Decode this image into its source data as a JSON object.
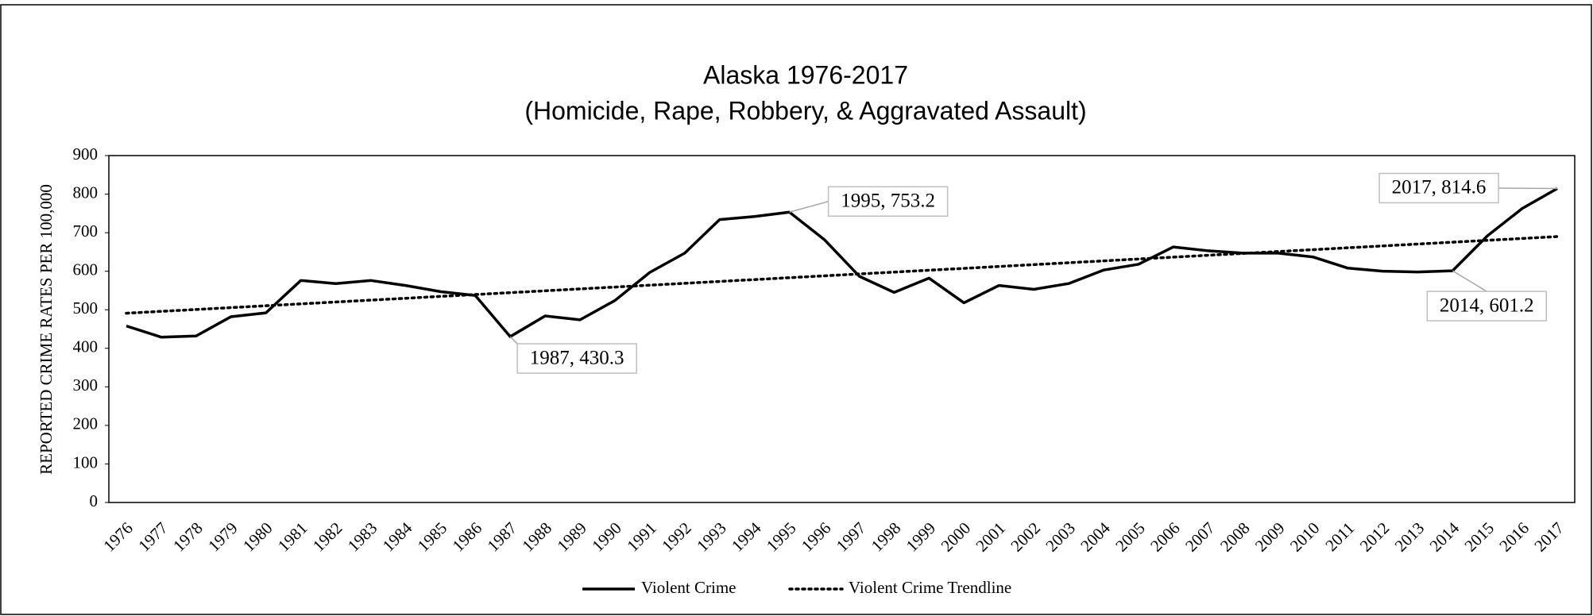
{
  "chart_data": {
    "type": "line",
    "title": "Alaska 1976-2017",
    "subtitle": "(Homicide, Rape, Robbery, & Aggravated Assault)",
    "y_label": "REPORTED CRIME RATES PER 100,000",
    "categories": [
      "1976",
      "1977",
      "1978",
      "1979",
      "1980",
      "1981",
      "1982",
      "1983",
      "1984",
      "1985",
      "1986",
      "1987",
      "1988",
      "1989",
      "1990",
      "1991",
      "1992",
      "1993",
      "1994",
      "1995",
      "1996",
      "1997",
      "1998",
      "1999",
      "2000",
      "2001",
      "2002",
      "2003",
      "2004",
      "2005",
      "2006",
      "2007",
      "2008",
      "2009",
      "2010",
      "2011",
      "2012",
      "2013",
      "2014",
      "2015",
      "2016",
      "2017"
    ],
    "series": [
      {
        "name": "Violent Crime",
        "color": "#000000",
        "dash": "solid",
        "values": [
          458,
          429,
          432,
          482,
          492,
          576,
          568,
          576,
          563,
          547,
          537,
          430.3,
          484,
          474,
          524,
          597,
          647,
          734,
          742,
          753.2,
          682,
          587,
          545,
          582,
          518,
          563,
          553,
          568,
          603,
          618,
          663,
          653,
          647,
          647,
          637,
          608,
          600,
          598,
          601.2,
          692,
          763,
          814.6
        ],
        "value_labels": [
          null,
          null,
          null,
          null,
          null,
          null,
          null,
          null,
          null,
          null,
          null,
          "1987, 430.3",
          null,
          null,
          null,
          null,
          null,
          null,
          null,
          "1995, 753.2",
          null,
          null,
          null,
          null,
          null,
          null,
          null,
          null,
          null,
          null,
          null,
          null,
          null,
          null,
          null,
          null,
          null,
          null,
          "2014, 601.2",
          null,
          null,
          "2017, 814.6"
        ]
      },
      {
        "name": "Violent Crime Trendline",
        "color": "#000000",
        "dash": "dotted",
        "values": [
          491,
          495.9,
          500.7,
          505.6,
          510.4,
          515.3,
          520.1,
          525.0,
          529.8,
          534.7,
          539.5,
          544.4,
          549.2,
          554.1,
          558.9,
          563.8,
          568.6,
          573.5,
          578.3,
          583.2,
          588.0,
          592.9,
          597.7,
          602.6,
          607.4,
          612.3,
          617.1,
          622.0,
          626.8,
          631.7,
          636.5,
          641.4,
          646.2,
          651.1,
          655.9,
          660.8,
          665.6,
          670.5,
          675.3,
          680.2,
          685.0,
          689.9
        ]
      }
    ],
    "ylim": [
      0,
      900
    ],
    "yticks": [
      0,
      100,
      200,
      300,
      400,
      500,
      600,
      700,
      800,
      900
    ],
    "grid": false,
    "legend": "bottom"
  }
}
